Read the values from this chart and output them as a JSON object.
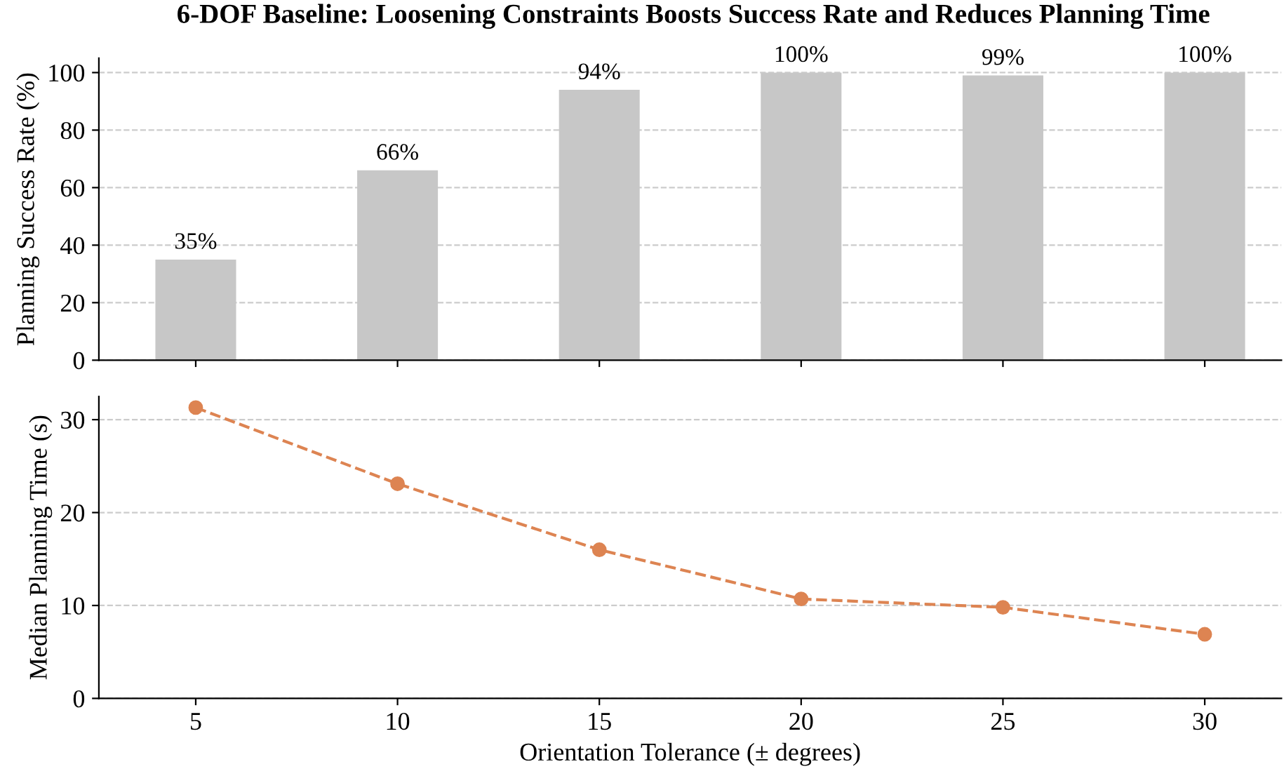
{
  "chart_data": [
    {
      "type": "bar",
      "title": "6-DOF Baseline: Loosening Constraints Boosts Success Rate and Reduces Planning Time",
      "ylabel": "Planning Success Rate (%)",
      "x": [
        5,
        10,
        15,
        20,
        25,
        30
      ],
      "series": [
        {
          "color": "#c7c7c7",
          "values": [
            35,
            66,
            94,
            100,
            99,
            100
          ],
          "value_labels": [
            "35%",
            "66%",
            "94%",
            "100%",
            "99%",
            "100%"
          ]
        }
      ],
      "xlim": [
        2.6,
        31.9
      ],
      "xticks": [
        5,
        10,
        15,
        20,
        25,
        30
      ],
      "ylim": [
        0,
        105
      ],
      "yticks": [
        0,
        20,
        40,
        60,
        80,
        100
      ],
      "grid": "y",
      "tick_labels": "y"
    },
    {
      "type": "line",
      "xlabel": "Orientation Tolerance (± degrees)",
      "ylabel": "Median Planning Time (s)",
      "x": [
        5,
        10,
        15,
        20,
        25,
        30
      ],
      "series": [
        {
          "color": "#dd8452",
          "values": [
            31.3,
            23.1,
            16.0,
            10.7,
            9.8,
            6.9
          ]
        }
      ],
      "xlim": [
        2.6,
        31.9
      ],
      "xticks": [
        5,
        10,
        15,
        20,
        25,
        30
      ],
      "ylim": [
        0,
        32.5
      ],
      "yticks": [
        0,
        10,
        20,
        30
      ],
      "grid": "y",
      "marker": "circle",
      "line_style": "dashed"
    }
  ]
}
